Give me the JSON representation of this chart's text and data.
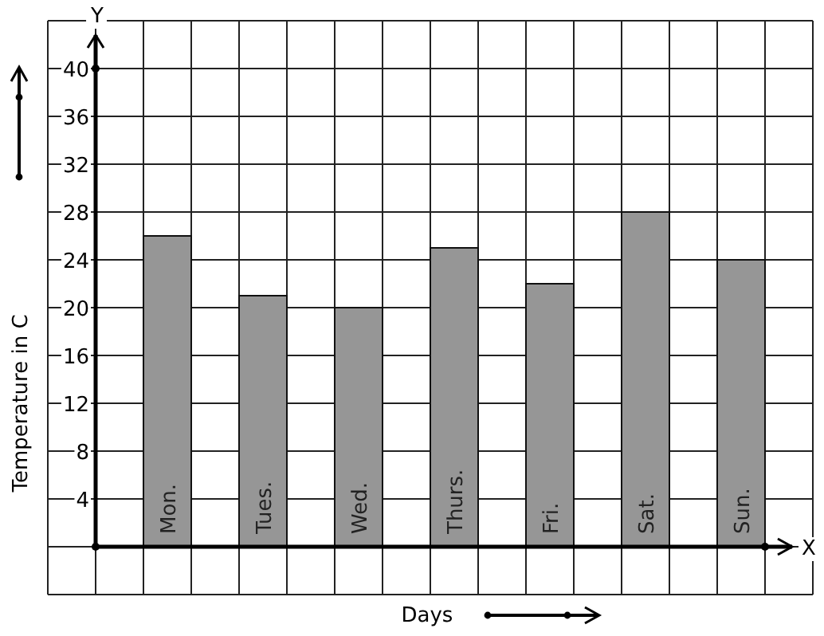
{
  "chart_data": {
    "type": "bar",
    "xlabel": "Days",
    "ylabel": "Temperature in C",
    "categories": [
      "Mon.",
      "Tues.",
      "Wed.",
      "Thurs.",
      "Fri.",
      "Sat.",
      "Sun."
    ],
    "values": [
      26,
      21,
      20,
      25,
      22,
      28,
      24
    ],
    "color": "#969696",
    "ylim": [
      -4,
      44
    ],
    "yticks": [
      4,
      8,
      12,
      16,
      20,
      24,
      28,
      32,
      36,
      40
    ],
    "grid": true,
    "annotations": [
      "X",
      "Y"
    ]
  }
}
